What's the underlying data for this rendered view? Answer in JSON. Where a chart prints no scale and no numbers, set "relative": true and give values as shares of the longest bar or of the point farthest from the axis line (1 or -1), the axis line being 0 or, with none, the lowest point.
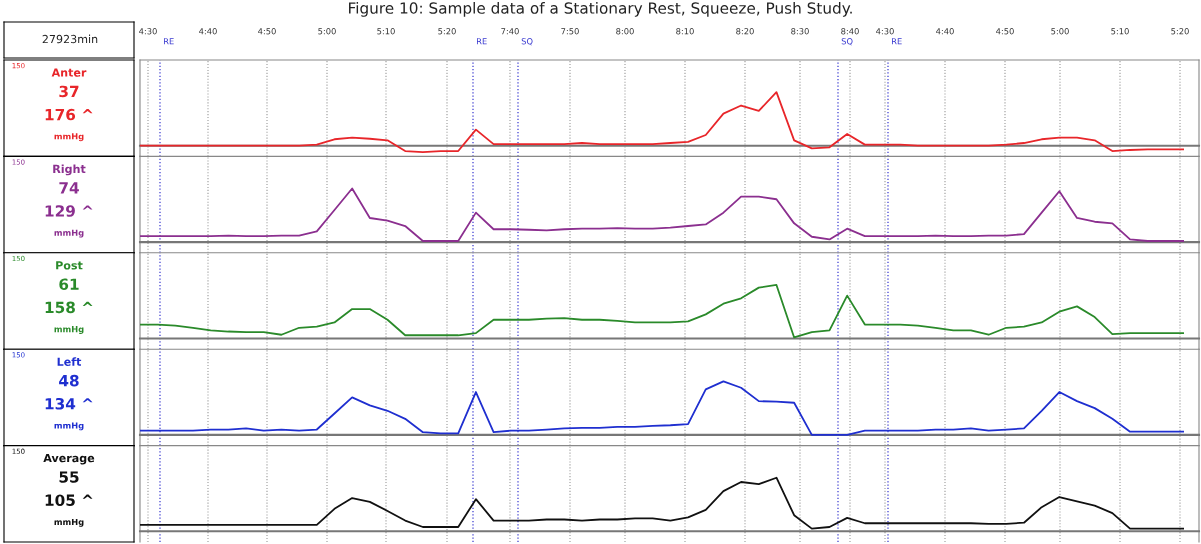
{
  "chart_data": [
    {
      "type": "line",
      "title": "Figure 10: Sample data of a Stationary Rest, Squeeze, Push Study.",
      "relative": true,
      "grid": "x",
      "categories": [
        null,
        null,
        null,
        null,
        null,
        null,
        null,
        null,
        null,
        null,
        null,
        null,
        null,
        null,
        null,
        null,
        null,
        null,
        null,
        null,
        null,
        null,
        null,
        null,
        null,
        null,
        null,
        null,
        null,
        null,
        null,
        null,
        null,
        null,
        null,
        null,
        null,
        null,
        null,
        null,
        null,
        null,
        null,
        null,
        null,
        null,
        null,
        null,
        null,
        null,
        null,
        null,
        null,
        null,
        null,
        null,
        null,
        null,
        null,
        null
      ],
      "annotations": [
        "Anter",
        "37",
        "176 ^",
        "mmHg",
        "150",
        "27923min",
        "4:30",
        "4:40",
        "4:50",
        "5:00",
        "5:10",
        "5:20",
        "7:40",
        "7:50",
        "8:00",
        "8:10",
        "8:20",
        "8:30",
        "8:40",
        "4:30",
        "4:40",
        "4:50",
        "5:00",
        "5:10",
        "5:20",
        "RE",
        "RE",
        "SQ",
        "SQ",
        "RE"
      ],
      "series": [
        {
          "color": "#e8262a",
          "values": [
            0,
            0,
            0,
            0,
            0,
            0,
            0,
            0,
            0,
            0,
            0.02,
            0.12,
            0.15,
            0.13,
            0.1,
            -0.1,
            -0.12,
            -0.1,
            -0.1,
            0.3,
            0.03,
            0.03,
            0.03,
            0.03,
            0.03,
            0.05,
            0.03,
            0.03,
            0.03,
            0.03,
            0.05,
            0.07,
            0.2,
            0.6,
            0.75,
            0.65,
            1,
            0.1,
            -0.05,
            -0.03,
            0.22,
            0.02,
            0.02,
            0.02,
            0,
            0,
            0,
            0,
            0,
            0.02,
            0.05,
            0.12,
            0.15,
            0.15,
            0.1,
            -0.1,
            -0.08,
            -0.07,
            -0.07,
            -0.07
          ]
        }
      ]
    },
    {
      "type": "line",
      "relative": true,
      "grid": "x",
      "categories": [
        null,
        null,
        null,
        null,
        null,
        null,
        null,
        null,
        null,
        null,
        null,
        null,
        null,
        null,
        null,
        null,
        null,
        null,
        null,
        null,
        null,
        null,
        null,
        null,
        null,
        null,
        null,
        null,
        null,
        null,
        null,
        null,
        null,
        null,
        null,
        null,
        null,
        null,
        null,
        null,
        null,
        null,
        null,
        null,
        null,
        null,
        null,
        null,
        null,
        null,
        null,
        null,
        null,
        null,
        null,
        null,
        null,
        null,
        null,
        null
      ],
      "annotations": [
        "Right",
        "74",
        "129 ^",
        "mmHg",
        "150"
      ],
      "series": [
        {
          "color": "#8b2f8f",
          "values": [
            0.11,
            0.11,
            0.11,
            0.11,
            0.11,
            0.12,
            0.11,
            0.11,
            0.12,
            0.12,
            0.2,
            0.6,
            1,
            0.45,
            0.4,
            0.3,
            0.02,
            0.02,
            0.02,
            0.55,
            0.24,
            0.24,
            0.23,
            0.22,
            0.24,
            0.25,
            0.25,
            0.26,
            0.25,
            0.25,
            0.27,
            0.3,
            0.33,
            0.55,
            0.85,
            0.85,
            0.8,
            0.35,
            0.1,
            0.05,
            0.25,
            0.11,
            0.11,
            0.11,
            0.11,
            0.12,
            0.11,
            0.11,
            0.12,
            0.12,
            0.15,
            0.55,
            0.95,
            0.45,
            0.38,
            0.35,
            0.05,
            0.02,
            0.02,
            0.02
          ]
        }
      ]
    },
    {
      "type": "line",
      "relative": true,
      "grid": "x",
      "categories": [
        null,
        null,
        null,
        null,
        null,
        null,
        null,
        null,
        null,
        null,
        null,
        null,
        null,
        null,
        null,
        null,
        null,
        null,
        null,
        null,
        null,
        null,
        null,
        null,
        null,
        null,
        null,
        null,
        null,
        null,
        null,
        null,
        null,
        null,
        null,
        null,
        null,
        null,
        null,
        null,
        null,
        null,
        null,
        null,
        null,
        null,
        null,
        null,
        null,
        null,
        null,
        null,
        null,
        null,
        null,
        null,
        null,
        null,
        null,
        null
      ],
      "annotations": [
        "Post",
        "61",
        "158 ^",
        "mmHg",
        "150"
      ],
      "series": [
        {
          "color": "#2a8a2a",
          "values": [
            0.26,
            0.26,
            0.24,
            0.2,
            0.15,
            0.13,
            0.12,
            0.12,
            0.07,
            0.2,
            0.22,
            0.3,
            0.55,
            0.55,
            0.35,
            0.06,
            0.06,
            0.06,
            0.06,
            0.1,
            0.35,
            0.35,
            0.35,
            0.37,
            0.38,
            0.35,
            0.35,
            0.33,
            0.3,
            0.3,
            0.3,
            0.32,
            0.45,
            0.65,
            0.75,
            0.95,
            1,
            0.02,
            0.12,
            0.15,
            0.8,
            0.26,
            0.26,
            0.26,
            0.24,
            0.2,
            0.15,
            0.15,
            0.07,
            0.2,
            0.22,
            0.3,
            0.5,
            0.6,
            0.4,
            0.08,
            0.1,
            0.1,
            0.1,
            0.1
          ]
        }
      ]
    },
    {
      "type": "line",
      "relative": true,
      "grid": "x",
      "categories": [
        null,
        null,
        null,
        null,
        null,
        null,
        null,
        null,
        null,
        null,
        null,
        null,
        null,
        null,
        null,
        null,
        null,
        null,
        null,
        null,
        null,
        null,
        null,
        null,
        null,
        null,
        null,
        null,
        null,
        null,
        null,
        null,
        null,
        null,
        null,
        null,
        null,
        null,
        null,
        null,
        null,
        null,
        null,
        null,
        null,
        null,
        null,
        null,
        null,
        null,
        null,
        null,
        null,
        null,
        null,
        null,
        null,
        null,
        null,
        null
      ],
      "annotations": [
        "Left",
        "48",
        "134 ^",
        "mmHg",
        "150"
      ],
      "series": [
        {
          "color": "#1f2fd0",
          "values": [
            0.08,
            0.08,
            0.08,
            0.08,
            0.1,
            0.1,
            0.12,
            0.08,
            0.1,
            0.08,
            0.1,
            0.4,
            0.7,
            0.55,
            0.45,
            0.3,
            0.05,
            0.03,
            0.03,
            0.8,
            0.05,
            0.08,
            0.08,
            0.1,
            0.12,
            0.13,
            0.13,
            0.15,
            0.15,
            0.17,
            0.18,
            0.2,
            0.85,
            1,
            0.88,
            0.63,
            0.62,
            0.6,
            0,
            0,
            0,
            0.08,
            0.08,
            0.08,
            0.08,
            0.1,
            0.1,
            0.12,
            0.08,
            0.1,
            0.12,
            0.45,
            0.8,
            0.63,
            0.5,
            0.3,
            0.06,
            0.06,
            0.06,
            0.06
          ]
        }
      ]
    },
    {
      "type": "line",
      "relative": true,
      "grid": "x",
      "categories": [
        null,
        null,
        null,
        null,
        null,
        null,
        null,
        null,
        null,
        null,
        null,
        null,
        null,
        null,
        null,
        null,
        null,
        null,
        null,
        null,
        null,
        null,
        null,
        null,
        null,
        null,
        null,
        null,
        null,
        null,
        null,
        null,
        null,
        null,
        null,
        null,
        null,
        null,
        null,
        null,
        null,
        null,
        null,
        null,
        null,
        null,
        null,
        null,
        null,
        null,
        null,
        null,
        null,
        null,
        null,
        null,
        null,
        null,
        null,
        null
      ],
      "annotations": [
        "Average",
        "55",
        "105 ^",
        "mmHg",
        "150"
      ],
      "series": [
        {
          "color": "#111111",
          "values": [
            0.12,
            0.12,
            0.12,
            0.12,
            0.12,
            0.12,
            0.12,
            0.12,
            0.12,
            0.12,
            0.12,
            0.42,
            0.62,
            0.55,
            0.38,
            0.2,
            0.08,
            0.08,
            0.08,
            0.6,
            0.2,
            0.2,
            0.2,
            0.22,
            0.22,
            0.2,
            0.22,
            0.22,
            0.24,
            0.24,
            0.2,
            0.26,
            0.4,
            0.75,
            0.92,
            0.88,
            1,
            0.3,
            0.05,
            0.08,
            0.25,
            0.15,
            0.15,
            0.15,
            0.15,
            0.15,
            0.15,
            0.15,
            0.14,
            0.14,
            0.16,
            0.45,
            0.64,
            0.56,
            0.48,
            0.34,
            0.05,
            0.05,
            0.05,
            0.05
          ]
        }
      ]
    }
  ]
}
